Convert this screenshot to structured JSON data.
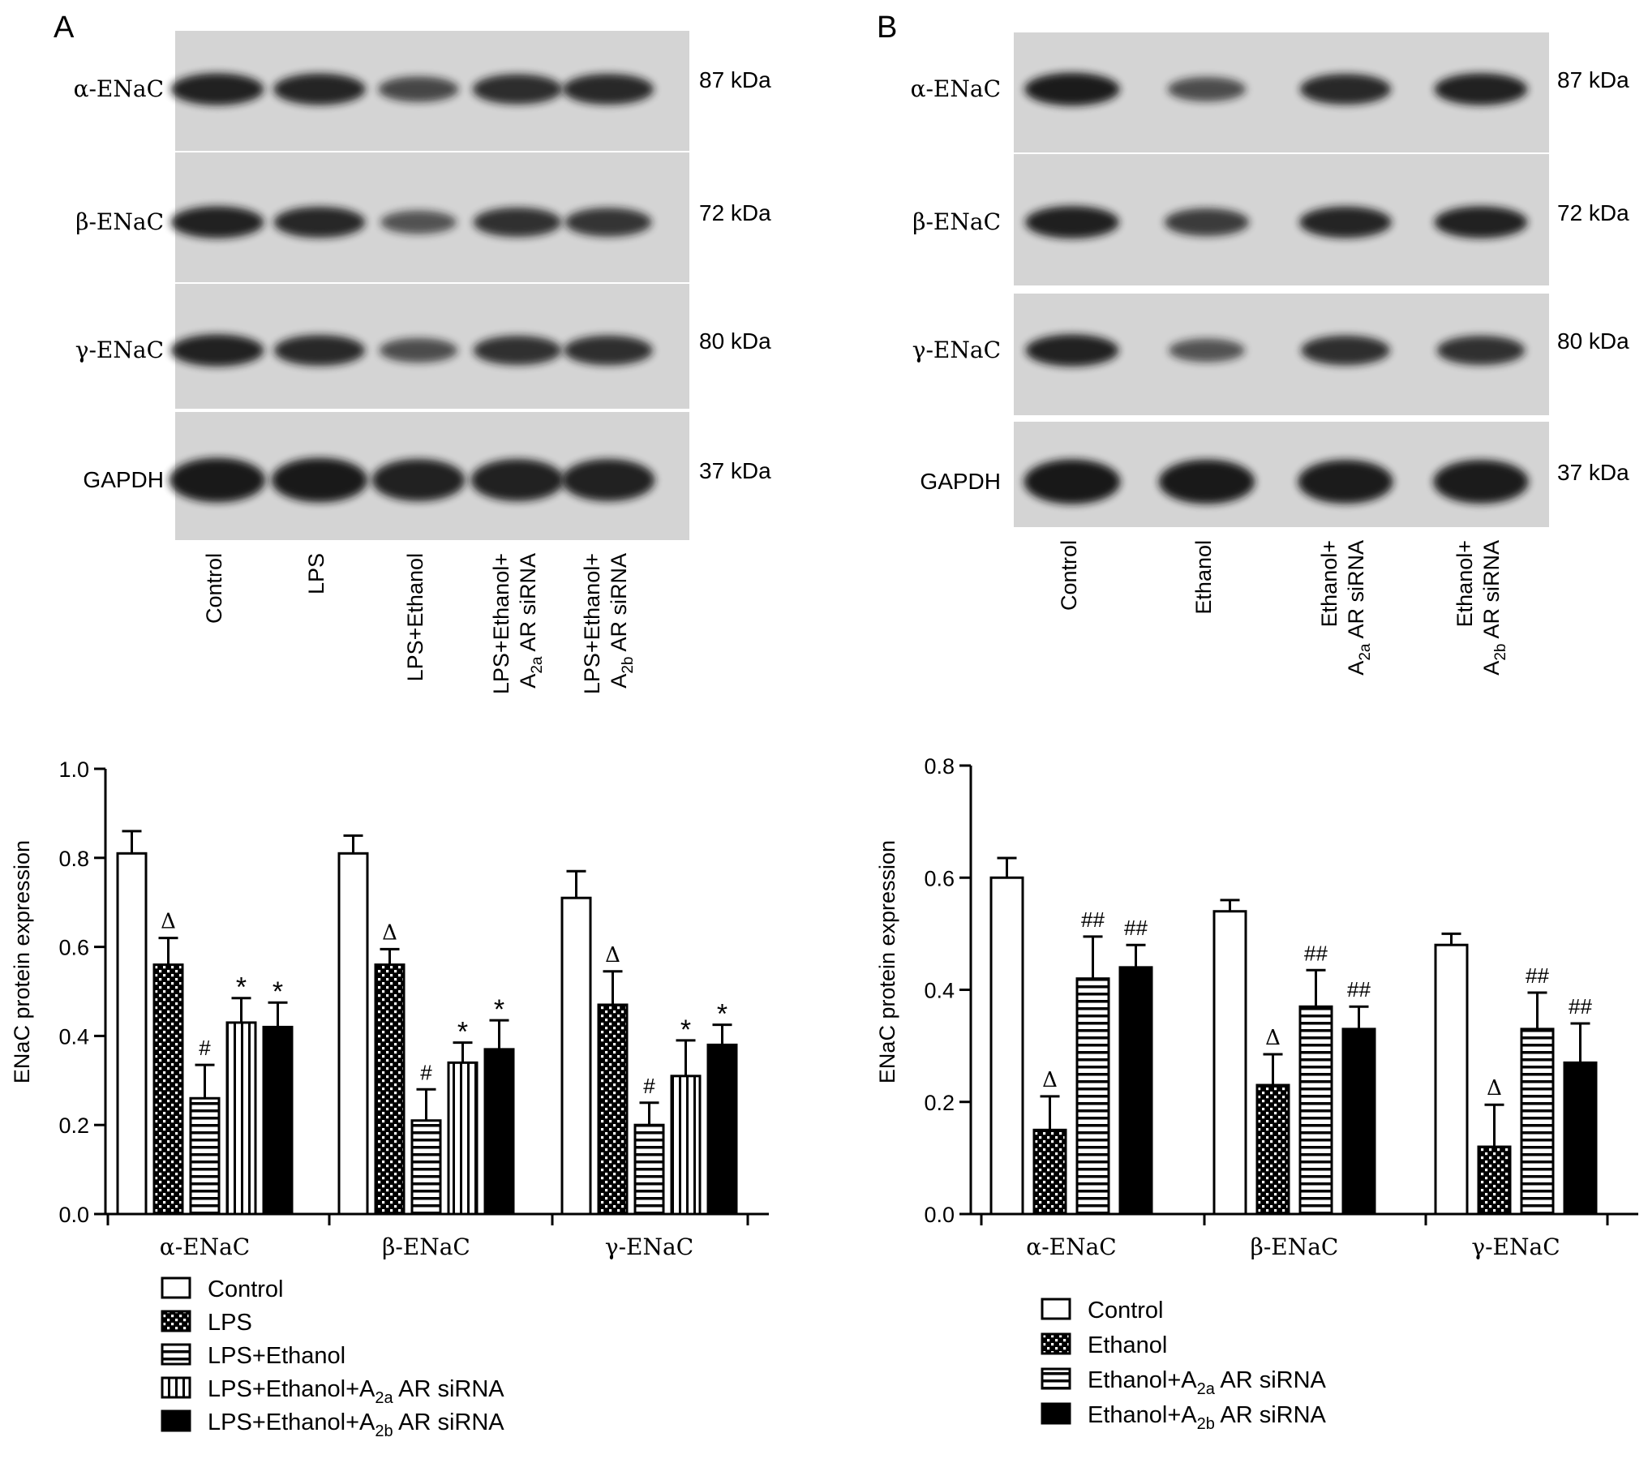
{
  "colors": {
    "ink": "#000000",
    "paper": "#ffffff",
    "blot_bg": "#d4d4d4",
    "band": "#151515"
  },
  "panels": [
    {
      "letter": "A",
      "blot": {
        "rows": [
          {
            "label": "α-ENaC",
            "kda": "87 kDa",
            "intensity": [
              0.9,
              0.88,
              0.6,
              0.82,
              0.85
            ]
          },
          {
            "label": "β-ENaC",
            "kda": "72 kDa",
            "intensity": [
              0.9,
              0.86,
              0.5,
              0.78,
              0.75
            ]
          },
          {
            "label": "γ-ENaC",
            "kda": "80 kDa",
            "intensity": [
              0.9,
              0.85,
              0.55,
              0.78,
              0.8
            ]
          },
          {
            "label": "GAPDH",
            "kda": "37 kDa",
            "intensity": [
              0.97,
              0.97,
              0.9,
              0.9,
              0.9
            ]
          }
        ],
        "lanes": [
          {
            "line1": "Control"
          },
          {
            "line1": "LPS"
          },
          {
            "line1": "LPS+Ethanol"
          },
          {
            "line1": "LPS+Ethanol+",
            "line2_pre": "A",
            "line2_sub": "2a",
            "line2_post": " AR siRNA"
          },
          {
            "line1": "LPS+Ethanol+",
            "line2_pre": "A",
            "line2_sub": "2b",
            "line2_post": " AR siRNA"
          }
        ]
      },
      "chart_data": {
        "type": "bar",
        "ylabel": "ENaC protein expression",
        "ylim": [
          0,
          1.0
        ],
        "yticks": [
          "0.0",
          "0.2",
          "0.4",
          "0.6",
          "0.8",
          "1.0"
        ],
        "categories": [
          "α-ENaC",
          "β-ENaC",
          "γ-ENaC"
        ],
        "series": [
          {
            "name": "Control",
            "pattern": "open",
            "values": [
              0.81,
              0.81,
              0.71
            ],
            "errors": [
              0.05,
              0.04,
              0.06
            ],
            "marks": [
              "",
              "",
              ""
            ]
          },
          {
            "name": "LPS",
            "pattern": "check",
            "values": [
              0.56,
              0.56,
              0.47
            ],
            "errors": [
              0.06,
              0.035,
              0.075
            ],
            "marks": [
              "Δ",
              "Δ",
              "Δ"
            ]
          },
          {
            "name": "LPS+Ethanol",
            "pattern": "hstripe",
            "values": [
              0.26,
              0.21,
              0.2
            ],
            "errors": [
              0.075,
              0.07,
              0.05
            ],
            "marks": [
              "#",
              "#",
              "#"
            ]
          },
          {
            "name": "LPS+Ethanol+A2a AR siRNA",
            "pattern": "vstripe",
            "values": [
              0.43,
              0.34,
              0.31
            ],
            "errors": [
              0.055,
              0.045,
              0.08
            ],
            "marks": [
              "*",
              "*",
              "*"
            ]
          },
          {
            "name": "LPS+Ethanol+A2b AR siRNA",
            "pattern": "solid",
            "values": [
              0.42,
              0.37,
              0.38
            ],
            "errors": [
              0.055,
              0.065,
              0.045
            ],
            "marks": [
              "*",
              "*",
              "*"
            ]
          }
        ],
        "legend": [
          {
            "pre": "Control"
          },
          {
            "pre": "LPS"
          },
          {
            "pre": "LPS+Ethanol"
          },
          {
            "pre": "LPS+Ethanol+A",
            "sub": "2a",
            "post": " AR siRNA"
          },
          {
            "pre": "LPS+Ethanol+A",
            "sub": "2b",
            "post": " AR siRNA"
          }
        ]
      }
    },
    {
      "letter": "B",
      "blot": {
        "rows": [
          {
            "label": "α-ENaC",
            "kda": "87 kDa",
            "intensity": [
              0.95,
              0.55,
              0.85,
              0.9
            ]
          },
          {
            "label": "β-ENaC",
            "kda": "72 kDa",
            "intensity": [
              0.92,
              0.7,
              0.88,
              0.9
            ]
          },
          {
            "label": "γ-ENaC",
            "kda": "80 kDa",
            "intensity": [
              0.9,
              0.5,
              0.8,
              0.78
            ]
          },
          {
            "label": "GAPDH",
            "kda": "37 kDa",
            "intensity": [
              0.98,
              0.97,
              0.95,
              0.95
            ]
          }
        ],
        "lanes": [
          {
            "line1": "Control"
          },
          {
            "line1": "Ethanol"
          },
          {
            "line1": "Ethanol+",
            "line2_pre": "A",
            "line2_sub": "2a",
            "line2_post": " AR siRNA"
          },
          {
            "line1": "Ethanol+",
            "line2_pre": "A",
            "line2_sub": "2b",
            "line2_post": " AR siRNA"
          }
        ]
      },
      "chart_data": {
        "type": "bar",
        "ylabel": "ENaC protein expression",
        "ylim": [
          0,
          0.8
        ],
        "yticks": [
          "0.0",
          "0.2",
          "0.4",
          "0.6",
          "0.8"
        ],
        "categories": [
          "α-ENaC",
          "β-ENaC",
          "γ-ENaC"
        ],
        "series": [
          {
            "name": "Control",
            "pattern": "open",
            "values": [
              0.6,
              0.54,
              0.48
            ],
            "errors": [
              0.035,
              0.02,
              0.02
            ],
            "marks": [
              "",
              "",
              ""
            ]
          },
          {
            "name": "Ethanol",
            "pattern": "check",
            "values": [
              0.15,
              0.23,
              0.12
            ],
            "errors": [
              0.06,
              0.055,
              0.075
            ],
            "marks": [
              "Δ",
              "Δ",
              "Δ"
            ]
          },
          {
            "name": "Ethanol+A2a AR siRNA",
            "pattern": "hstripe",
            "values": [
              0.42,
              0.37,
              0.33
            ],
            "errors": [
              0.075,
              0.065,
              0.065
            ],
            "marks": [
              "##",
              "##",
              "##"
            ]
          },
          {
            "name": "Ethanol+A2b AR siRNA",
            "pattern": "solid",
            "values": [
              0.44,
              0.33,
              0.27
            ],
            "errors": [
              0.04,
              0.04,
              0.07
            ],
            "marks": [
              "##",
              "##",
              "##"
            ]
          }
        ],
        "legend": [
          {
            "pre": "Control"
          },
          {
            "pre": "Ethanol"
          },
          {
            "pre": "Ethanol+A",
            "sub": "2a",
            "post": " AR siRNA"
          },
          {
            "pre": "Ethanol+A",
            "sub": "2b",
            "post": " AR siRNA"
          }
        ]
      }
    }
  ]
}
